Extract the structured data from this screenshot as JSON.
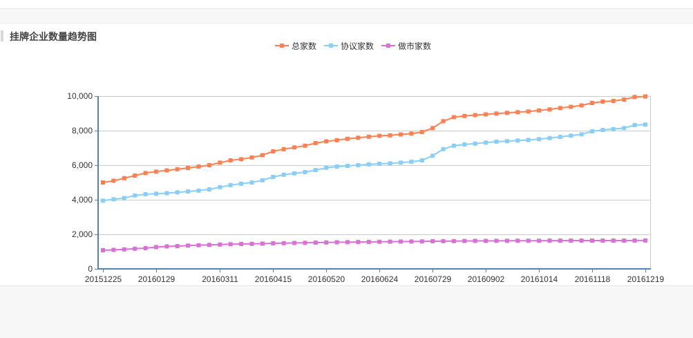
{
  "page": {
    "title": "挂牌企业数量趋势图"
  },
  "chart_data": {
    "type": "line",
    "title": "",
    "xlabel": "",
    "ylabel": "",
    "ylim": [
      0,
      10000
    ],
    "yticks": [
      0,
      2000,
      4000,
      6000,
      8000,
      10000
    ],
    "ytick_labels": [
      "0",
      "2,000",
      "4,000",
      "6,000",
      "8,000",
      "10,000"
    ],
    "xtick_labels": [
      "20151225",
      "20160129",
      "20160311",
      "20160415",
      "20160520",
      "20160624",
      "20160729",
      "20160902",
      "20161014",
      "20161118",
      "20161219"
    ],
    "xtick_positions": [
      0,
      5,
      11,
      16,
      21,
      26,
      31,
      36,
      41,
      46,
      51
    ],
    "grid": true,
    "legend_position": "top-center",
    "series": [
      {
        "name": "总家数",
        "color": "#ff7f50",
        "values": [
          5000,
          5100,
          5250,
          5400,
          5550,
          5630,
          5700,
          5770,
          5840,
          5920,
          6000,
          6150,
          6280,
          6350,
          6450,
          6580,
          6800,
          6930,
          7030,
          7130,
          7280,
          7380,
          7450,
          7530,
          7590,
          7650,
          7700,
          7730,
          7780,
          7830,
          7920,
          8150,
          8550,
          8780,
          8850,
          8900,
          8940,
          8990,
          9030,
          9070,
          9110,
          9170,
          9230,
          9310,
          9380,
          9460,
          9600,
          9680,
          9720,
          9800,
          9950,
          9980
        ]
      },
      {
        "name": "协议家数",
        "color": "#87cefa",
        "values": [
          3950,
          4030,
          4100,
          4250,
          4320,
          4350,
          4380,
          4430,
          4480,
          4530,
          4600,
          4730,
          4850,
          4930,
          5000,
          5130,
          5320,
          5450,
          5530,
          5600,
          5720,
          5850,
          5920,
          5960,
          6000,
          6050,
          6080,
          6110,
          6150,
          6200,
          6280,
          6550,
          6930,
          7130,
          7200,
          7250,
          7310,
          7360,
          7390,
          7430,
          7460,
          7510,
          7570,
          7640,
          7710,
          7790,
          7960,
          8040,
          8090,
          8150,
          8320,
          8350
        ]
      },
      {
        "name": "做市家数",
        "color": "#da70d6",
        "values": [
          1080,
          1100,
          1130,
          1170,
          1200,
          1260,
          1300,
          1320,
          1350,
          1370,
          1390,
          1410,
          1430,
          1440,
          1450,
          1460,
          1480,
          1490,
          1500,
          1510,
          1520,
          1530,
          1540,
          1550,
          1555,
          1560,
          1570,
          1575,
          1580,
          1585,
          1590,
          1600,
          1605,
          1610,
          1615,
          1620,
          1620,
          1625,
          1625,
          1630,
          1630,
          1630,
          1635,
          1635,
          1640,
          1640,
          1640,
          1640,
          1640,
          1640,
          1645,
          1645
        ]
      }
    ]
  }
}
